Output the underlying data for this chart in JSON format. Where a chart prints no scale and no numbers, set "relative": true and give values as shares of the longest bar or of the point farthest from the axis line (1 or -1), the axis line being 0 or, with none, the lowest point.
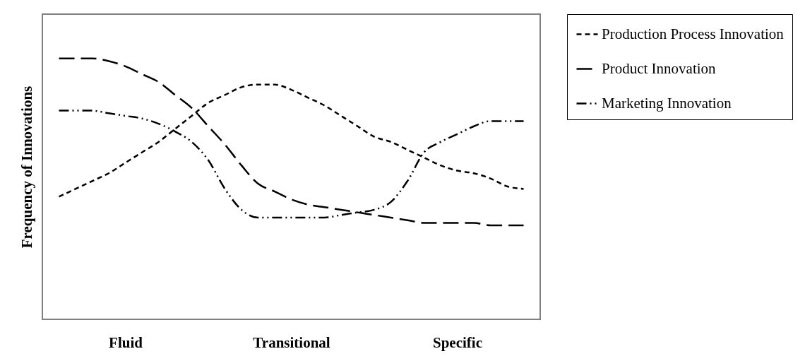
{
  "chart_data": {
    "type": "line",
    "ylabel": "Frequency of Innovations",
    "relative": true,
    "legend": "right",
    "grid": false,
    "categories": [
      null,
      null,
      null,
      null,
      "Fluid",
      null,
      null,
      null,
      null,
      null,
      null,
      null,
      null,
      null,
      "Transitional",
      null,
      null,
      null,
      null,
      null,
      null,
      null,
      null,
      null,
      "Specific",
      null,
      null,
      null,
      null
    ],
    "series": [
      {
        "name": "Production Process Innovation",
        "color": "#000000",
        "line_style": "dotted",
        "values": [
          0.47,
          0.5,
          0.53,
          0.56,
          0.6,
          0.64,
          0.68,
          0.73,
          0.78,
          0.83,
          0.86,
          0.89,
          0.9,
          0.9,
          0.88,
          0.85,
          0.82,
          0.78,
          0.74,
          0.7,
          0.68,
          0.65,
          0.62,
          0.59,
          0.57,
          0.56,
          0.54,
          0.51,
          0.5
        ]
      },
      {
        "name": "Product Innovation",
        "color": "#000000",
        "line_style": "dashed",
        "values": [
          1,
          1,
          1,
          0.99,
          0.97,
          0.94,
          0.91,
          0.86,
          0.81,
          0.74,
          0.67,
          0.59,
          0.52,
          0.49,
          0.46,
          0.44,
          0.43,
          0.42,
          0.41,
          0.4,
          0.39,
          0.38,
          0.37,
          0.37,
          0.37,
          0.37,
          0.36,
          0.36,
          0.36
        ]
      },
      {
        "name": "Marketing Innovation",
        "color": "#000000",
        "line_style": "dashdot",
        "values": [
          0.8,
          0.8,
          0.8,
          0.79,
          0.78,
          0.77,
          0.75,
          0.72,
          0.68,
          0.61,
          0.5,
          0.42,
          0.39,
          0.39,
          0.39,
          0.39,
          0.39,
          0.4,
          0.41,
          0.42,
          0.45,
          0.53,
          0.64,
          0.68,
          0.71,
          0.74,
          0.76,
          0.76,
          0.76
        ]
      }
    ]
  }
}
